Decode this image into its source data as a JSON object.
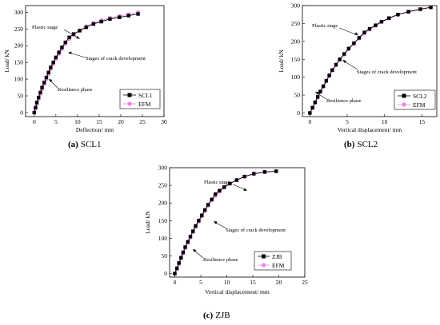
{
  "chart_data": [
    {
      "type": "line",
      "panel": "a",
      "caption_letter": "(a)",
      "caption_text": "SCL1",
      "xlabel": "Deflection/ mm",
      "ylabel": "Load/ kN",
      "xlim": [
        -2,
        30
      ],
      "ylim": [
        -12,
        320
      ],
      "xticks": [
        0,
        5,
        10,
        15,
        20,
        25,
        30
      ],
      "yticks": [
        0,
        50,
        100,
        150,
        200,
        250,
        300
      ],
      "legend_position": "bottom-right",
      "grid": false,
      "series": [
        {
          "name": "SCL1",
          "color": "#000000",
          "marker": "square",
          "x": [
            0,
            0.3,
            0.6,
            1.0,
            1.4,
            1.8,
            2.3,
            2.8,
            3.3,
            3.8,
            4.4,
            5.0,
            5.7,
            6.4,
            7.2,
            8.1,
            9.1,
            10.5,
            12.0,
            13.7,
            15.5,
            17.5,
            19.7,
            21.8,
            24.0
          ],
          "y": [
            0,
            15,
            30,
            45,
            60,
            75,
            90,
            105,
            120,
            135,
            150,
            165,
            180,
            195,
            210,
            225,
            235,
            245,
            255,
            265,
            272,
            280,
            285,
            290,
            295
          ]
        },
        {
          "name": "EFM",
          "color": "#ee82ee",
          "marker": "circle",
          "x": [
            0,
            0.3,
            0.6,
            1.0,
            1.4,
            1.8,
            2.3,
            2.8,
            3.3,
            3.8,
            4.4,
            5.0,
            5.7,
            6.4,
            7.2,
            8.1,
            9.1,
            10.5,
            12.0,
            13.7,
            15.5,
            17.5,
            19.7,
            21.8,
            24.0
          ],
          "y": [
            0,
            12,
            26,
            40,
            55,
            70,
            85,
            100,
            115,
            130,
            145,
            160,
            175,
            190,
            205,
            220,
            232,
            245,
            258,
            268,
            276,
            283,
            289,
            294,
            300
          ]
        }
      ],
      "annotations": [
        {
          "text": "Plastic stage"
        },
        {
          "text": "Stages of crack development"
        },
        {
          "text": "Resilience phase"
        }
      ]
    },
    {
      "type": "line",
      "panel": "b",
      "caption_letter": "(b)",
      "caption_text": "SCL2",
      "xlabel": "Vertical displacement/ mm",
      "ylabel": "Load/ kN",
      "xlim": [
        -1,
        17
      ],
      "ylim": [
        -10,
        300
      ],
      "xticks": [
        0,
        5,
        10,
        15
      ],
      "yticks": [
        0,
        50,
        100,
        150,
        200,
        250,
        300
      ],
      "legend_position": "bottom-right",
      "grid": false,
      "series": [
        {
          "name": "SCL2",
          "color": "#000000",
          "marker": "square",
          "x": [
            0,
            0.35,
            0.7,
            1.05,
            1.4,
            1.8,
            2.2,
            2.6,
            3.0,
            3.5,
            4.0,
            4.6,
            5.2,
            5.9,
            6.6,
            7.3,
            8.0,
            8.8,
            9.6,
            10.6,
            11.8,
            13.2,
            14.8,
            16.2
          ],
          "y": [
            0,
            15,
            30,
            45,
            60,
            75,
            90,
            105,
            120,
            135,
            150,
            165,
            180,
            195,
            210,
            225,
            235,
            245,
            255,
            265,
            275,
            283,
            290,
            295
          ]
        },
        {
          "name": "EFM",
          "color": "#ee82ee",
          "marker": "circle",
          "x": [
            0,
            0.35,
            0.7,
            1.05,
            1.4,
            1.8,
            2.2,
            2.6,
            3.0,
            3.5,
            4.0,
            4.6,
            5.2,
            5.9,
            6.6,
            7.3,
            8.0,
            8.8,
            9.6,
            10.6,
            11.8,
            13.2,
            14.8,
            16.2
          ],
          "y": [
            0,
            13,
            28,
            43,
            58,
            73,
            88,
            103,
            118,
            133,
            148,
            163,
            178,
            193,
            208,
            222,
            233,
            244,
            254,
            264,
            274,
            282,
            289,
            296
          ]
        }
      ],
      "annotations": [
        {
          "text": "Plastic stage"
        },
        {
          "text": "Stages of crack development"
        },
        {
          "text": "Resilience phase"
        }
      ]
    },
    {
      "type": "line",
      "panel": "c",
      "caption_letter": "(c)",
      "caption_text": "ZJB",
      "xlabel": "Vertical displacement/ mm",
      "ylabel": "Load/ kN",
      "xlim": [
        -1,
        25
      ],
      "ylim": [
        -10,
        300
      ],
      "xticks": [
        0,
        5,
        10,
        15,
        20,
        25
      ],
      "yticks": [
        0,
        50,
        100,
        150,
        200,
        250,
        300
      ],
      "legend_position": "bottom-right",
      "grid": false,
      "series": [
        {
          "name": "ZJB",
          "color": "#000000",
          "marker": "square",
          "x": [
            0,
            0.4,
            0.8,
            1.2,
            1.6,
            2.0,
            2.5,
            3.0,
            3.5,
            4.0,
            4.6,
            5.2,
            5.8,
            6.4,
            7.1,
            7.8,
            8.6,
            9.5,
            10.6,
            11.9,
            13.4,
            15.2,
            17.3,
            19.5
          ],
          "y": [
            0,
            15,
            30,
            45,
            60,
            75,
            90,
            105,
            120,
            135,
            150,
            165,
            180,
            195,
            210,
            225,
            235,
            245,
            255,
            265,
            275,
            283,
            288,
            290
          ]
        },
        {
          "name": "EFM",
          "color": "#ee82ee",
          "marker": "circle",
          "x": [
            0,
            0.4,
            0.8,
            1.2,
            1.6,
            2.0,
            2.5,
            3.0,
            3.5,
            4.0,
            4.6,
            5.2,
            5.8,
            6.4,
            7.1,
            7.8,
            8.6,
            9.5,
            10.6,
            11.9,
            13.4,
            15.2,
            17.3,
            19.5
          ],
          "y": [
            0,
            12,
            27,
            42,
            57,
            72,
            87,
            102,
            117,
            132,
            147,
            162,
            177,
            192,
            207,
            220,
            232,
            243,
            254,
            264,
            274,
            282,
            287,
            290
          ]
        }
      ],
      "annotations": [
        {
          "text": "Plastic stage"
        },
        {
          "text": "Stages of crack development"
        },
        {
          "text": "Resilience phase"
        }
      ]
    }
  ]
}
